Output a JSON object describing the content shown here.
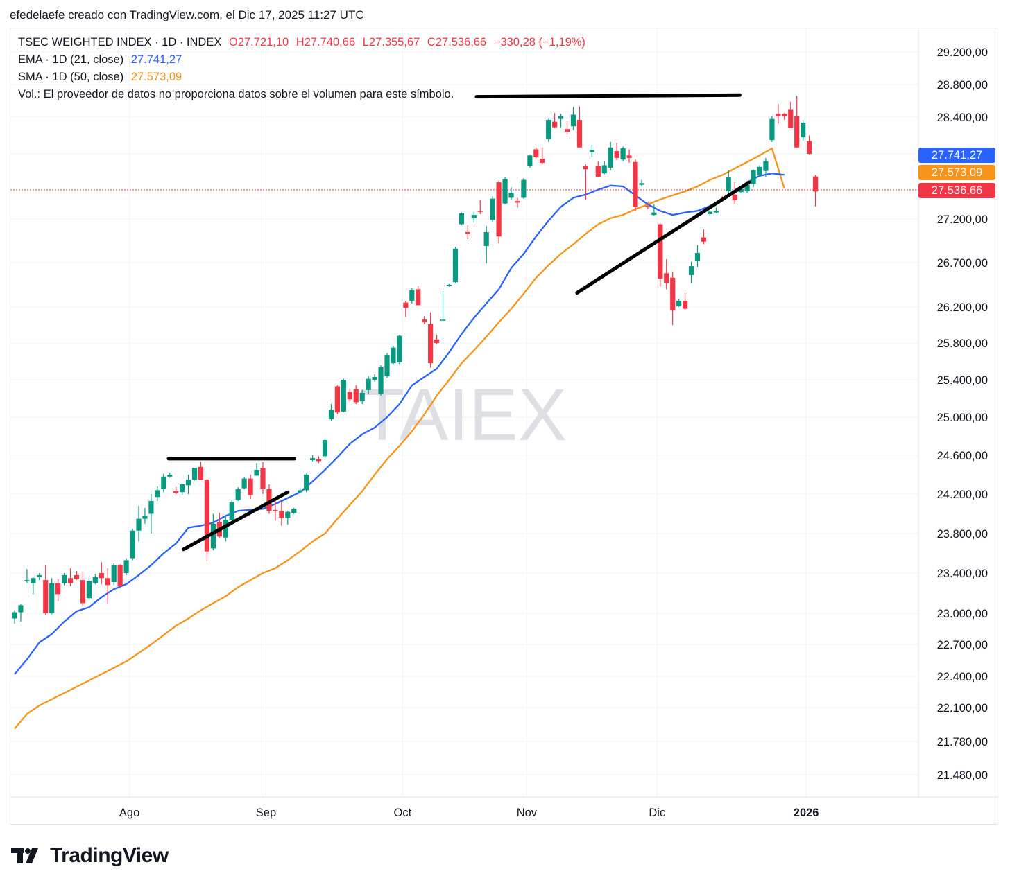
{
  "caption": "efedelaefe creado con TradingView.com, el Dic 17, 2025 11:27 UTC",
  "legend": {
    "symbol": "TSEC WEIGHTED INDEX · 1D · INDEX",
    "open": "O27.721,10",
    "high": "H27.740,66",
    "low": "L27.355,67",
    "close": "C27.536,66",
    "change": "−330,28 (−1,19%)",
    "ema_label": "EMA · 1D (21, close)",
    "ema_value": "27.741,27",
    "sma_label": "SMA · 1D (50, close)",
    "sma_value": "27.573,09",
    "vol_note": "Vol.: El proveedor de datos no proporciona datos sobre el volumen para este símbolo."
  },
  "watermark": "TAIEX",
  "price_tags": {
    "ema": "27.741,27",
    "sma": "27.573,09",
    "last": "27.536,66"
  },
  "footer": {
    "brand": "TradingView"
  },
  "colors": {
    "up": "#089981",
    "down": "#f23645",
    "ema": "#2962ff",
    "sma": "#f7931a",
    "grid": "#f0f3fa"
  },
  "chart_data": {
    "type": "candlestick",
    "y_ticks": [
      "29.200,00",
      "28.800,00",
      "28.400,00",
      "28.000,00",
      "27.200,00",
      "26.700,00",
      "26.200,00",
      "25.800,00",
      "25.400,00",
      "25.000,00",
      "24.600,00",
      "24.200,00",
      "23.800,00",
      "23.400,00",
      "23.000,00",
      "22.700,00",
      "22.400,00",
      "22.100,00",
      "21.780,00",
      "21.480,00"
    ],
    "y_tick_values": [
      29200,
      28800,
      28400,
      28000,
      27200,
      26700,
      26200,
      25800,
      25400,
      25000,
      24600,
      24200,
      23800,
      23400,
      23000,
      22700,
      22400,
      22100,
      21780,
      21480
    ],
    "x_ticks": [
      "Ago",
      "Sep",
      "Oct",
      "Nov",
      "Dic",
      "2026"
    ],
    "x_tick_index": [
      18.5,
      40.5,
      62.5,
      82.5,
      103.5,
      127.5
    ],
    "last_price": 27536.66,
    "candles": [
      [
        22950,
        23030,
        22900,
        23010
      ],
      [
        23010,
        23090,
        22920,
        23080
      ],
      [
        23320,
        23440,
        23300,
        23330
      ],
      [
        23300,
        23360,
        23190,
        23350
      ],
      [
        23360,
        23400,
        23330,
        23380
      ],
      [
        23330,
        23480,
        22980,
        23000
      ],
      [
        23000,
        23350,
        22990,
        23300
      ],
      [
        23300,
        23340,
        23120,
        23190
      ],
      [
        23300,
        23400,
        23280,
        23380
      ],
      [
        23350,
        23450,
        23270,
        23300
      ],
      [
        23380,
        23420,
        23330,
        23340
      ],
      [
        23330,
        23420,
        23080,
        23100
      ],
      [
        23150,
        23370,
        23130,
        23320
      ],
      [
        23300,
        23390,
        23290,
        23360
      ],
      [
        23400,
        23510,
        23290,
        23350
      ],
      [
        23350,
        23450,
        23090,
        23280
      ],
      [
        23310,
        23500,
        23280,
        23480
      ],
      [
        23480,
        23490,
        23260,
        23270
      ],
      [
        23400,
        23550,
        23380,
        23530
      ],
      [
        23550,
        23850,
        23530,
        23830
      ],
      [
        23830,
        24080,
        23720,
        23950
      ],
      [
        23950,
        24060,
        23900,
        23980
      ],
      [
        24000,
        24200,
        23800,
        24130
      ],
      [
        24170,
        24280,
        24130,
        24240
      ],
      [
        24250,
        24410,
        24220,
        24380
      ],
      [
        24380,
        24420,
        24370,
        24400
      ],
      [
        24230,
        24270,
        24200,
        24210
      ],
      [
        24220,
        24310,
        24190,
        24300
      ],
      [
        24290,
        24400,
        24200,
        24350
      ],
      [
        24350,
        24460,
        24340,
        24470
      ],
      [
        24480,
        24530,
        24350,
        24350
      ],
      [
        24350,
        24360,
        23520,
        23620
      ],
      [
        23650,
        24000,
        23630,
        23900
      ],
      [
        23920,
        24010,
        23760,
        23770
      ],
      [
        23760,
        23970,
        23720,
        23940
      ],
      [
        23940,
        24140,
        23930,
        24120
      ],
      [
        24140,
        24270,
        24130,
        24250
      ],
      [
        24260,
        24380,
        24250,
        24360
      ],
      [
        24360,
        24400,
        24150,
        24190
      ],
      [
        24390,
        24520,
        24390,
        24450
      ],
      [
        24470,
        24530,
        24200,
        24250
      ],
      [
        24250,
        24300,
        24000,
        24030
      ],
      [
        24040,
        24170,
        23930,
        24030
      ],
      [
        24030,
        24130,
        23880,
        23960
      ],
      [
        23960,
        24030,
        23890,
        24020
      ],
      [
        24010,
        24060,
        24000,
        24050
      ],
      [
        24220,
        24260,
        24210,
        24240
      ],
      [
        24240,
        24410,
        24220,
        24400
      ],
      [
        24550,
        24600,
        24540,
        24570
      ],
      [
        24560,
        24590,
        24520,
        24540
      ],
      [
        24590,
        24780,
        24570,
        24760
      ],
      [
        24980,
        25140,
        24960,
        25080
      ],
      [
        25330,
        25340,
        25030,
        25050
      ],
      [
        25060,
        25410,
        25050,
        25400
      ],
      [
        25270,
        25300,
        25170,
        25190
      ],
      [
        25300,
        25340,
        25140,
        25160
      ],
      [
        25170,
        25290,
        25140,
        25260
      ],
      [
        25290,
        25440,
        25250,
        25410
      ],
      [
        25400,
        25460,
        25380,
        25430
      ],
      [
        25250,
        25560,
        25230,
        25540
      ],
      [
        25440,
        25690,
        25420,
        25670
      ],
      [
        25580,
        25770,
        25570,
        25750
      ],
      [
        25590,
        25890,
        25570,
        25880
      ],
      [
        26250,
        26270,
        26090,
        26190
      ],
      [
        26270,
        26410,
        26240,
        26390
      ],
      [
        26400,
        26440,
        26220,
        26220
      ],
      [
        26060,
        26100,
        26010,
        26030
      ],
      [
        26010,
        26140,
        25530,
        25580
      ],
      [
        25840,
        25890,
        25790,
        25800
      ],
      [
        26050,
        26380,
        26040,
        26060
      ],
      [
        26440,
        26460,
        26430,
        26450
      ],
      [
        26480,
        26880,
        26470,
        26860
      ],
      [
        27140,
        27280,
        27130,
        27270
      ],
      [
        27050,
        27130,
        26970,
        27030
      ],
      [
        27210,
        27290,
        27160,
        27250
      ],
      [
        27300,
        27430,
        27260,
        27290
      ],
      [
        26890,
        27120,
        26690,
        27050
      ],
      [
        27190,
        27480,
        27170,
        27450
      ],
      [
        27650,
        27670,
        26920,
        27000
      ],
      [
        27390,
        27710,
        27380,
        27690
      ],
      [
        27460,
        27590,
        27440,
        27520
      ],
      [
        27420,
        27460,
        27340,
        27400
      ],
      [
        27460,
        27700,
        27450,
        27680
      ],
      [
        27850,
        27990,
        27830,
        27980
      ],
      [
        28050,
        28070,
        27950,
        27960
      ],
      [
        27940,
        28070,
        27870,
        27890
      ],
      [
        28160,
        28380,
        28130,
        28370
      ],
      [
        28350,
        28450,
        28280,
        28290
      ],
      [
        28380,
        28440,
        28290,
        28410
      ],
      [
        28270,
        28360,
        28210,
        28240
      ],
      [
        28300,
        28520,
        28260,
        28430
      ],
      [
        28370,
        28530,
        28100,
        28070
      ],
      [
        27850,
        27870,
        27440,
        27810
      ],
      [
        28020,
        28100,
        27960,
        28040
      ],
      [
        27850,
        27910,
        27710,
        27720
      ],
      [
        27760,
        27910,
        27750,
        27860
      ],
      [
        27830,
        28130,
        27800,
        28070
      ],
      [
        28030,
        28120,
        27920,
        27950
      ],
      [
        27930,
        28080,
        27910,
        28060
      ],
      [
        27980,
        28050,
        27890,
        27950
      ],
      [
        27900,
        27930,
        27300,
        27350
      ],
      [
        27620,
        27680,
        27600,
        27640
      ],
      [
        27360,
        27410,
        27320,
        27350
      ],
      [
        27250,
        27380,
        27240,
        27280
      ],
      [
        27140,
        27150,
        26430,
        26520
      ],
      [
        26580,
        26740,
        26400,
        26470
      ],
      [
        26530,
        26600,
        26000,
        26160
      ],
      [
        26210,
        26290,
        26200,
        26270
      ],
      [
        26270,
        26360,
        26170,
        26180
      ],
      [
        26560,
        26710,
        26470,
        26660
      ],
      [
        26720,
        26900,
        26650,
        26810
      ],
      [
        26990,
        27080,
        26910,
        26940
      ],
      [
        27260,
        27300,
        27250,
        27290
      ],
      [
        27280,
        27340,
        27270,
        27300
      ],
      [
        27450,
        27480,
        27410,
        27430
      ],
      [
        27540,
        27800,
        27500,
        27710
      ],
      [
        27500,
        27650,
        27390,
        27430
      ],
      [
        27530,
        27590,
        27520,
        27570
      ],
      [
        27540,
        27670,
        27520,
        27620
      ],
      [
        27630,
        27810,
        27590,
        27800
      ],
      [
        27740,
        27860,
        27710,
        27840
      ],
      [
        27790,
        27950,
        27720,
        27910
      ],
      [
        28150,
        28410,
        28130,
        28380
      ],
      [
        28440,
        28560,
        28330,
        28410
      ],
      [
        28440,
        28450,
        28370,
        28410
      ],
      [
        28490,
        28590,
        28290,
        28280
      ],
      [
        28410,
        28660,
        28070,
        28070
      ],
      [
        28180,
        28370,
        28140,
        28340
      ],
      [
        28140,
        28200,
        27990,
        28000
      ],
      [
        27721.1,
        27740.66,
        27355.67,
        27536.66
      ]
    ],
    "ema21": [
      [
        0,
        22420
      ],
      [
        2,
        22560
      ],
      [
        4,
        22720
      ],
      [
        6,
        22800
      ],
      [
        8,
        22920
      ],
      [
        10,
        23020
      ],
      [
        12,
        23060
      ],
      [
        14,
        23160
      ],
      [
        16,
        23240
      ],
      [
        18,
        23290
      ],
      [
        20,
        23380
      ],
      [
        22,
        23480
      ],
      [
        24,
        23600
      ],
      [
        26,
        23700
      ],
      [
        28,
        23860
      ],
      [
        30,
        23880
      ],
      [
        32,
        23910
      ],
      [
        34,
        23980
      ],
      [
        36,
        24030
      ],
      [
        38,
        24040
      ],
      [
        40,
        24050
      ],
      [
        42,
        24100
      ],
      [
        44,
        24160
      ],
      [
        46,
        24220
      ],
      [
        48,
        24330
      ],
      [
        50,
        24450
      ],
      [
        52,
        24580
      ],
      [
        54,
        24720
      ],
      [
        56,
        24820
      ],
      [
        58,
        24890
      ],
      [
        60,
        25000
      ],
      [
        62,
        25140
      ],
      [
        64,
        25340
      ],
      [
        66,
        25430
      ],
      [
        68,
        25520
      ],
      [
        70,
        25700
      ],
      [
        72,
        25900
      ],
      [
        74,
        26080
      ],
      [
        76,
        26240
      ],
      [
        78,
        26400
      ],
      [
        80,
        26640
      ],
      [
        82,
        26800
      ],
      [
        84,
        27000
      ],
      [
        86,
        27180
      ],
      [
        88,
        27350
      ],
      [
        90,
        27460
      ],
      [
        92,
        27500
      ],
      [
        94,
        27560
      ],
      [
        96,
        27610
      ],
      [
        98,
        27600
      ],
      [
        100,
        27490
      ],
      [
        102,
        27380
      ],
      [
        104,
        27300
      ],
      [
        106,
        27250
      ],
      [
        108,
        27280
      ],
      [
        110,
        27300
      ],
      [
        112,
        27360
      ],
      [
        114,
        27440
      ],
      [
        116,
        27540
      ],
      [
        118,
        27650
      ],
      [
        120,
        27730
      ],
      [
        122,
        27760
      ],
      [
        124,
        27741.27
      ]
    ],
    "sma50": [
      [
        0,
        21900
      ],
      [
        2,
        22040
      ],
      [
        4,
        22120
      ],
      [
        6,
        22180
      ],
      [
        8,
        22240
      ],
      [
        10,
        22300
      ],
      [
        12,
        22360
      ],
      [
        14,
        22420
      ],
      [
        16,
        22480
      ],
      [
        18,
        22540
      ],
      [
        20,
        22620
      ],
      [
        22,
        22700
      ],
      [
        24,
        22790
      ],
      [
        26,
        22880
      ],
      [
        28,
        22950
      ],
      [
        30,
        23030
      ],
      [
        32,
        23100
      ],
      [
        34,
        23170
      ],
      [
        36,
        23260
      ],
      [
        38,
        23330
      ],
      [
        40,
        23400
      ],
      [
        42,
        23450
      ],
      [
        44,
        23530
      ],
      [
        46,
        23620
      ],
      [
        48,
        23720
      ],
      [
        50,
        23800
      ],
      [
        52,
        23950
      ],
      [
        54,
        24090
      ],
      [
        56,
        24230
      ],
      [
        58,
        24400
      ],
      [
        60,
        24560
      ],
      [
        62,
        24700
      ],
      [
        64,
        24850
      ],
      [
        66,
        25030
      ],
      [
        68,
        25230
      ],
      [
        70,
        25400
      ],
      [
        72,
        25580
      ],
      [
        74,
        25720
      ],
      [
        76,
        25870
      ],
      [
        78,
        26030
      ],
      [
        80,
        26180
      ],
      [
        82,
        26350
      ],
      [
        84,
        26530
      ],
      [
        86,
        26670
      ],
      [
        88,
        26800
      ],
      [
        90,
        26910
      ],
      [
        92,
        27030
      ],
      [
        94,
        27140
      ],
      [
        96,
        27210
      ],
      [
        98,
        27250
      ],
      [
        100,
        27320
      ],
      [
        102,
        27380
      ],
      [
        104,
        27440
      ],
      [
        106,
        27490
      ],
      [
        108,
        27540
      ],
      [
        110,
        27600
      ],
      [
        112,
        27680
      ],
      [
        114,
        27740
      ],
      [
        116,
        27820
      ],
      [
        118,
        27900
      ],
      [
        120,
        27980
      ],
      [
        122,
        28060
      ],
      [
        124,
        27573.09
      ]
    ],
    "trendlines": [
      {
        "from": [
          74.4,
          28650
        ],
        "to": [
          116.8,
          28670
        ]
      },
      {
        "from": [
          24.8,
          24565
        ],
        "to": [
          45.1,
          24565
        ]
      },
      {
        "from": [
          27.2,
          23640
        ],
        "to": [
          44.0,
          24220
        ]
      },
      {
        "from": [
          90.6,
          26360
        ],
        "to": [
          118.3,
          27650
        ]
      }
    ]
  }
}
